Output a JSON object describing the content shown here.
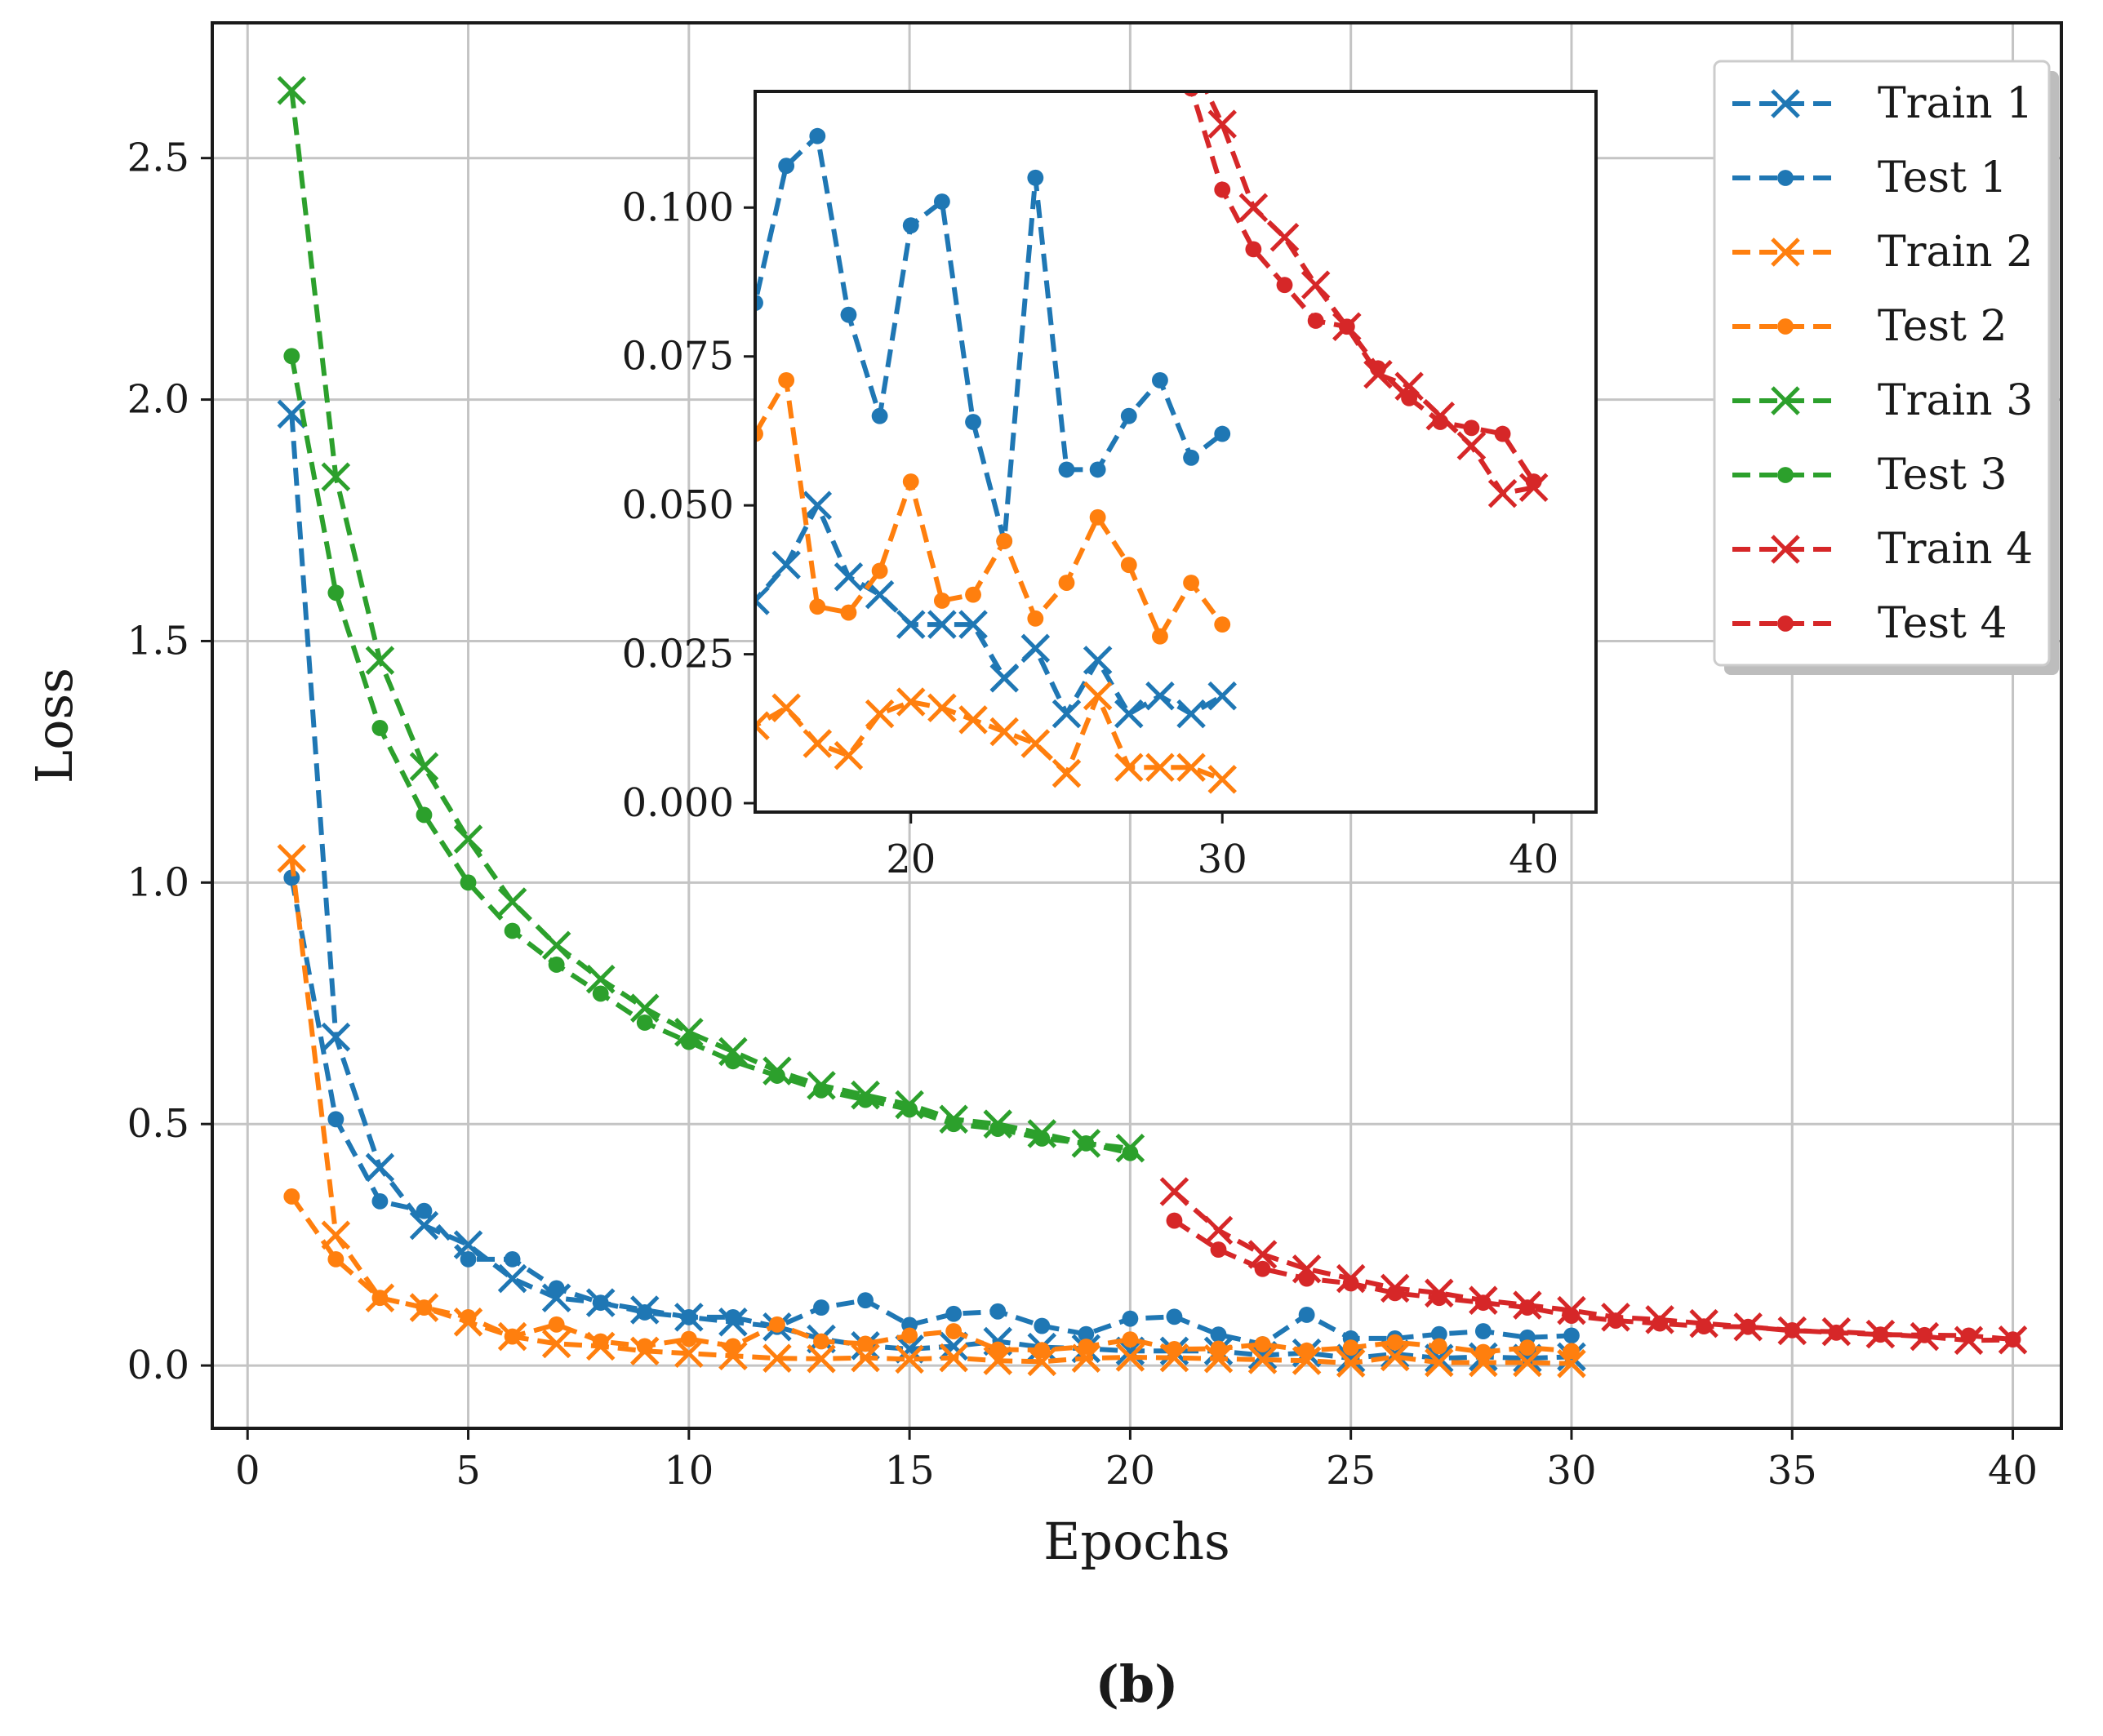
{
  "caption": "(b)",
  "chart_data": {
    "type": "line",
    "xlabel": "Epochs",
    "ylabel": "Loss",
    "xlim": [
      -0.8,
      41.1
    ],
    "ylim": [
      -0.13,
      2.78
    ],
    "xticks": [
      "0",
      "5",
      "10",
      "15",
      "20",
      "25",
      "30",
      "35",
      "40"
    ],
    "yticks": [
      "0.0",
      "0.5",
      "1.0",
      "1.5",
      "2.0",
      "2.5"
    ],
    "grid": true,
    "legend_position": "top-right",
    "legend": [
      "Train 1",
      "Test 1",
      "Train 2",
      "Test 2",
      "Train 3",
      "Test 3",
      "Train 4",
      "Test 4"
    ],
    "series": [
      {
        "name": "Train 1",
        "color": "#1f77b4",
        "marker": "x",
        "x": [
          1,
          2,
          3,
          4,
          5,
          6,
          7,
          8,
          9,
          10,
          11,
          12,
          13,
          14,
          15,
          16,
          17,
          18,
          19,
          20,
          21,
          22,
          23,
          24,
          25,
          26,
          27,
          28,
          29,
          30
        ],
        "y": [
          1.97,
          0.68,
          0.41,
          0.29,
          0.25,
          0.18,
          0.14,
          0.13,
          0.115,
          0.1,
          0.09,
          0.08,
          0.055,
          0.041,
          0.034,
          0.04,
          0.05,
          0.038,
          0.035,
          0.03,
          0.03,
          0.03,
          0.021,
          0.026,
          0.015,
          0.024,
          0.015,
          0.018,
          0.015,
          0.018
        ]
      },
      {
        "name": "Test 1",
        "color": "#1f77b4",
        "marker": "o",
        "x": [
          1,
          2,
          3,
          4,
          5,
          6,
          7,
          8,
          9,
          10,
          11,
          12,
          13,
          14,
          15,
          16,
          17,
          18,
          19,
          20,
          21,
          22,
          23,
          24,
          25,
          26,
          27,
          28,
          29,
          30
        ],
        "y": [
          1.01,
          0.51,
          0.34,
          0.32,
          0.22,
          0.22,
          0.16,
          0.13,
          0.11,
          0.1,
          0.1,
          0.08,
          0.12,
          0.135,
          0.084,
          0.107,
          0.112,
          0.082,
          0.065,
          0.097,
          0.101,
          0.064,
          0.044,
          0.105,
          0.056,
          0.056,
          0.065,
          0.071,
          0.058,
          0.062
        ]
      },
      {
        "name": "Train 2",
        "color": "#ff7f0e",
        "marker": "x",
        "x": [
          1,
          2,
          3,
          4,
          5,
          6,
          7,
          8,
          9,
          10,
          11,
          12,
          13,
          14,
          15,
          16,
          17,
          18,
          19,
          20,
          21,
          22,
          23,
          24,
          25,
          26,
          27,
          28,
          29,
          30
        ],
        "y": [
          1.05,
          0.27,
          0.14,
          0.12,
          0.09,
          0.06,
          0.045,
          0.04,
          0.03,
          0.025,
          0.02,
          0.015,
          0.014,
          0.016,
          0.013,
          0.016,
          0.01,
          0.008,
          0.015,
          0.017,
          0.016,
          0.014,
          0.012,
          0.01,
          0.005,
          0.018,
          0.006,
          0.006,
          0.006,
          0.004
        ]
      },
      {
        "name": "Test 2",
        "color": "#ff7f0e",
        "marker": "o",
        "x": [
          1,
          2,
          3,
          4,
          5,
          6,
          7,
          8,
          9,
          10,
          11,
          12,
          13,
          14,
          15,
          16,
          17,
          18,
          19,
          20,
          21,
          22,
          23,
          24,
          25,
          26,
          27,
          28,
          29,
          30
        ],
        "y": [
          0.35,
          0.22,
          0.14,
          0.12,
          0.1,
          0.06,
          0.085,
          0.05,
          0.04,
          0.055,
          0.04,
          0.085,
          0.05,
          0.045,
          0.062,
          0.071,
          0.033,
          0.032,
          0.039,
          0.054,
          0.034,
          0.035,
          0.044,
          0.031,
          0.037,
          0.048,
          0.04,
          0.028,
          0.037,
          0.03
        ]
      },
      {
        "name": "Train 3",
        "color": "#2ca02c",
        "marker": "x",
        "x": [
          1,
          2,
          3,
          4,
          5,
          6,
          7,
          8,
          9,
          10,
          11,
          12,
          13,
          14,
          15,
          16,
          17,
          18,
          19,
          20
        ],
        "y": [
          2.64,
          1.84,
          1.46,
          1.24,
          1.09,
          0.96,
          0.87,
          0.8,
          0.74,
          0.69,
          0.65,
          0.61,
          0.58,
          0.56,
          0.54,
          0.51,
          0.5,
          0.48,
          0.46,
          0.45
        ]
      },
      {
        "name": "Test 3",
        "color": "#2ca02c",
        "marker": "o",
        "x": [
          1,
          2,
          3,
          4,
          5,
          6,
          7,
          8,
          9,
          10,
          11,
          12,
          13,
          14,
          15,
          16,
          17,
          18,
          19,
          20
        ],
        "y": [
          2.09,
          1.6,
          1.32,
          1.14,
          1.0,
          0.9,
          0.83,
          0.77,
          0.71,
          0.67,
          0.63,
          0.6,
          0.57,
          0.55,
          0.53,
          0.5,
          0.49,
          0.47,
          0.46,
          0.44
        ]
      },
      {
        "name": "Train 4",
        "color": "#d62728",
        "marker": "x",
        "x": [
          21,
          22,
          23,
          24,
          25,
          26,
          27,
          28,
          29,
          30,
          31,
          32,
          33,
          34,
          35,
          36,
          37,
          38,
          39,
          40
        ],
        "y": [
          0.36,
          0.28,
          0.23,
          0.2,
          0.18,
          0.16,
          0.15,
          0.135,
          0.125,
          0.114,
          0.1,
          0.095,
          0.087,
          0.08,
          0.072,
          0.07,
          0.065,
          0.06,
          0.052,
          0.053
        ]
      },
      {
        "name": "Test 4",
        "color": "#d62728",
        "marker": "o",
        "x": [
          21,
          22,
          23,
          24,
          25,
          26,
          27,
          28,
          29,
          30,
          31,
          32,
          33,
          34,
          35,
          36,
          37,
          38,
          39,
          40
        ],
        "y": [
          0.3,
          0.24,
          0.2,
          0.18,
          0.17,
          0.15,
          0.14,
          0.13,
          0.12,
          0.103,
          0.093,
          0.087,
          0.081,
          0.08,
          0.073,
          0.068,
          0.064,
          0.063,
          0.062,
          0.054
        ]
      }
    ],
    "inset": {
      "xlim": [
        15,
        42
      ],
      "ylim": [
        -0.0015,
        0.1195
      ],
      "xticks": [
        "20",
        "30",
        "40"
      ],
      "yticks": [
        "0.000",
        "0.025",
        "0.050",
        "0.075",
        "0.100"
      ],
      "grid": false,
      "note": "zoomed view of the same eight series"
    }
  }
}
